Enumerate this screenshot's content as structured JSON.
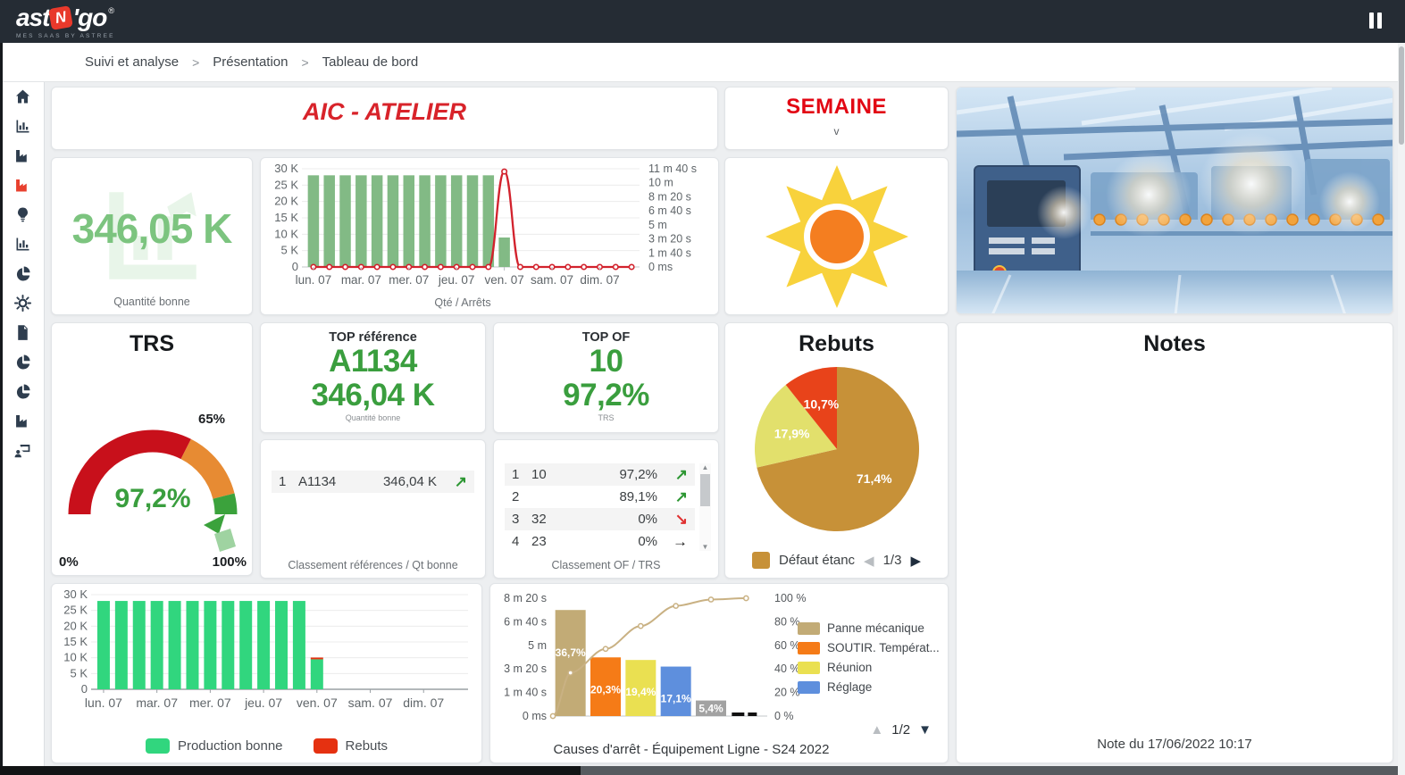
{
  "topbar": {
    "logo": {
      "part1": "ast",
      "n": "N",
      "part2": "go",
      "reg": "®",
      "tagline": "MES SAAS BY ASTREE"
    }
  },
  "breadcrumb": [
    "Suivi et analyse",
    "Présentation",
    "Tableau de bord"
  ],
  "sidebar": {
    "icons": [
      {
        "name": "home-icon",
        "type": "home",
        "active": false
      },
      {
        "name": "bar-chart-icon",
        "type": "chart",
        "active": false
      },
      {
        "name": "factory-icon",
        "type": "factory",
        "active": false
      },
      {
        "name": "factory-active-icon",
        "type": "factory",
        "active": true
      },
      {
        "name": "lightbulb-icon",
        "type": "bulb",
        "active": false
      },
      {
        "name": "bar-chart-2-icon",
        "type": "chart",
        "active": false
      },
      {
        "name": "pie-chart-icon",
        "type": "pie",
        "active": false
      },
      {
        "name": "gear-icon",
        "type": "gear",
        "active": false
      },
      {
        "name": "document-icon",
        "type": "doc",
        "active": false
      },
      {
        "name": "pie-chart-2-icon",
        "type": "pie",
        "active": false
      },
      {
        "name": "pie-chart-3-icon",
        "type": "pie",
        "active": false
      },
      {
        "name": "factory-2-icon",
        "type": "factory",
        "active": false
      },
      {
        "name": "user-screen-icon",
        "type": "userscreen",
        "active": false
      }
    ]
  },
  "tiles": {
    "aic": {
      "title": "AIC - ATELIER"
    },
    "semaine": {
      "title": "SEMAINE",
      "dropdown": "v"
    },
    "quantity": {
      "value": "346,05 K",
      "caption": "Quantité bonne"
    },
    "top_reference": {
      "title": "TOP référence",
      "value1": "A1134",
      "value2": "346,04 K",
      "caption": "Quantité bonne"
    },
    "top_of": {
      "title": "TOP OF",
      "value1": "10",
      "value2": "97,2%",
      "caption": "TRS"
    },
    "classement_ref": {
      "caption": "Classement références / Qt bonne",
      "rows": [
        {
          "rank": "1",
          "label": "A1134",
          "value": "346,04 K",
          "trend": "up"
        }
      ]
    },
    "classement_of": {
      "caption": "Classement OF / TRS",
      "rows": [
        {
          "rank": "1",
          "label": "10",
          "value": "97,2%",
          "trend": "up"
        },
        {
          "rank": "2",
          "label": "",
          "value": "89,1%",
          "trend": "up"
        },
        {
          "rank": "3",
          "label": "32",
          "value": "0%",
          "trend": "down"
        },
        {
          "rank": "4",
          "label": "23",
          "value": "0%",
          "trend": "flat"
        }
      ]
    },
    "trs": {
      "title": "TRS"
    },
    "rebuts": {
      "title": "Rebuts"
    },
    "notes": {
      "title": "Notes",
      "footer": "Note du 17/06/2022 10:17"
    }
  },
  "chart_data": [
    {
      "id": "qte_arrets",
      "type": "bar+line",
      "caption": "Qté / Arrêts",
      "slots": 21,
      "x_labels": [
        "lun. 07",
        "mar. 07",
        "mer. 07",
        "jeu. 07",
        "ven. 07",
        "sam. 07",
        "dim. 07"
      ],
      "label_slot_indices": [
        0,
        3,
        6,
        9,
        12,
        15,
        18
      ],
      "bars": {
        "name": "Quantité bonne",
        "color": "#82ba85",
        "values": [
          28000,
          28000,
          28000,
          28000,
          28000,
          28000,
          28000,
          28000,
          28000,
          28000,
          28000,
          28000,
          9000,
          0,
          0,
          0,
          0,
          0,
          0,
          0,
          0
        ]
      },
      "line": {
        "name": "Arrêts",
        "color": "#d2222d",
        "values_seconds": [
          0,
          0,
          0,
          0,
          0,
          0,
          0,
          0,
          0,
          0,
          0,
          0,
          680,
          0,
          0,
          0,
          0,
          0,
          0,
          0,
          0
        ]
      },
      "left_axis": {
        "max": 30000,
        "ticks": [
          0,
          5000,
          10000,
          15000,
          20000,
          25000,
          30000
        ],
        "tick_labels": [
          "0",
          "5 K",
          "10 K",
          "15 K",
          "20 K",
          "25 K",
          "30 K"
        ]
      },
      "right_axis": {
        "max": 700,
        "ticks": [
          0,
          100,
          200,
          300,
          400,
          500,
          600,
          700
        ],
        "tick_labels": [
          "0 ms",
          "1 m 40 s",
          "3 m 20 s",
          "5 m",
          "6 m 40 s",
          "8 m 20 s",
          "10 m",
          "11 m 40 s"
        ]
      }
    },
    {
      "id": "trs_gauge",
      "type": "gauge",
      "value": 97.2,
      "value_label": "97,2%",
      "min_label": "0%",
      "max_label": "100%",
      "threshold_label": "65%",
      "zones": [
        {
          "from": 0,
          "to": 65,
          "color": "#c8101b"
        },
        {
          "from": 65,
          "to": 92,
          "color": "#e78b33"
        },
        {
          "from": 92,
          "to": 100,
          "color": "#3ba23c"
        }
      ]
    },
    {
      "id": "rebuts_pie",
      "type": "pie",
      "slices": [
        {
          "label": "71,4%",
          "value": 71.4,
          "color": "#c79138"
        },
        {
          "label": "17,9%",
          "value": 17.9,
          "color": "#e2e06c"
        },
        {
          "label": "10,7%",
          "value": 10.7,
          "color": "#e8431a"
        }
      ],
      "legend": {
        "label": "Défaut étanc",
        "color": "#c79138",
        "pagination": "1/3"
      }
    },
    {
      "id": "production",
      "type": "bar",
      "slots": 21,
      "x_labels": [
        "lun. 07",
        "mar. 07",
        "mer. 07",
        "jeu. 07",
        "ven. 07",
        "sam. 07",
        "dim. 07"
      ],
      "label_slot_indices": [
        0,
        3,
        6,
        9,
        12,
        15,
        18
      ],
      "series": [
        {
          "name": "Production bonne",
          "color": "#31d67e",
          "values": [
            28000,
            28000,
            28000,
            28000,
            28000,
            28000,
            28000,
            28000,
            28000,
            28000,
            28000,
            28000,
            9500,
            0,
            0,
            0,
            0,
            0,
            0,
            0,
            0
          ]
        },
        {
          "name": "Rebuts",
          "color": "#e53111",
          "values": [
            0,
            0,
            0,
            0,
            0,
            0,
            0,
            0,
            0,
            0,
            0,
            0,
            400,
            0,
            0,
            0,
            0,
            0,
            0,
            0,
            0
          ]
        }
      ],
      "left_axis": {
        "max": 30000,
        "ticks": [
          0,
          5000,
          10000,
          15000,
          20000,
          25000,
          30000
        ],
        "tick_labels": [
          "0",
          "5 K",
          "10 K",
          "15 K",
          "20 K",
          "25 K",
          "30 K"
        ]
      }
    },
    {
      "id": "pareto",
      "type": "pareto",
      "title": "Causes d'arrêt - Équipement Ligne - S24 2022",
      "bars": [
        {
          "name": "Panne mécanique",
          "label": "36,7%",
          "seconds": 450,
          "color": "#c2ab76"
        },
        {
          "name": "SOUTIR. Températ...",
          "label": "20,3%",
          "seconds": 249,
          "color": "#f57b17"
        },
        {
          "name": "Réunion",
          "label": "19,4%",
          "seconds": 238,
          "color": "#eae051"
        },
        {
          "name": "Réglage",
          "label": "17,1%",
          "seconds": 210,
          "color": "#5e8fdd"
        },
        {
          "name": "",
          "label": "5,4%",
          "seconds": 66,
          "color": "#a2a2a2"
        },
        {
          "name": "",
          "label": "",
          "seconds": 12,
          "color": "#111111"
        }
      ],
      "cumulative_pct": [
        36.7,
        57.0,
        76.4,
        93.5,
        98.9,
        100
      ],
      "left_axis": {
        "max": 500,
        "ticks": [
          0,
          100,
          200,
          300,
          400,
          500
        ],
        "tick_labels": [
          "0 ms",
          "1 m 40 s",
          "3 m 20 s",
          "5 m",
          "6 m 40 s",
          "8 m 20 s"
        ]
      },
      "right_axis": {
        "max": 100,
        "ticks": [
          0,
          20,
          40,
          60,
          80,
          100
        ],
        "tick_labels": [
          "0 %",
          "20 %",
          "40 %",
          "60 %",
          "80 %",
          "100 %"
        ]
      },
      "line_color": "#c9b183",
      "legend": [
        {
          "label": "Panne mécanique",
          "color": "#c2ab76"
        },
        {
          "label": "SOUTIR. Températ...",
          "color": "#f57b17"
        },
        {
          "label": "Réunion",
          "color": "#eae051"
        },
        {
          "label": "Réglage",
          "color": "#5e8fdd"
        }
      ],
      "pagination": "1/2"
    }
  ]
}
